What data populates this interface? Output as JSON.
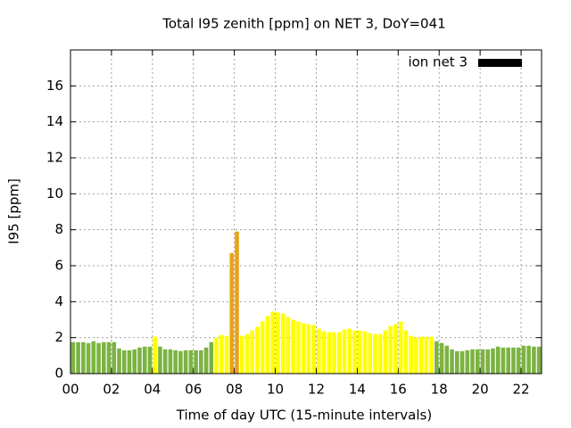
{
  "chart_data": {
    "type": "bar",
    "title": "Total I95 zenith [ppm] on NET 3, DoY=041",
    "xlabel": "Time of day UTC (15-minute intervals)",
    "ylabel": "I95 [ppm]",
    "x": [
      0,
      0.25,
      0.5,
      0.75,
      1,
      1.25,
      1.5,
      1.75,
      2,
      2.25,
      2.5,
      2.75,
      3,
      3.25,
      3.5,
      3.75,
      4,
      4.25,
      4.5,
      4.75,
      5,
      5.25,
      5.5,
      5.75,
      6,
      6.25,
      6.5,
      6.75,
      7,
      7.25,
      7.5,
      7.75,
      8,
      8.25,
      8.5,
      8.75,
      9,
      9.25,
      9.5,
      9.75,
      10,
      10.25,
      10.5,
      10.75,
      11,
      11.25,
      11.5,
      11.75,
      12,
      12.25,
      12.5,
      12.75,
      13,
      13.25,
      13.5,
      13.75,
      14,
      14.25,
      14.5,
      14.75,
      15,
      15.25,
      15.5,
      15.75,
      16,
      16.25,
      16.5,
      16.75,
      17,
      17.25,
      17.5,
      17.75,
      18,
      18.25,
      18.5,
      18.75,
      19,
      19.25,
      19.5,
      19.75,
      20,
      20.25,
      20.5,
      20.75,
      21,
      21.25,
      21.5,
      21.75,
      22,
      22.25,
      22.5,
      22.75
    ],
    "series": [
      {
        "name": "ion net 3",
        "color": "#000000",
        "values": [
          1.75,
          1.75,
          1.75,
          1.7,
          1.8,
          1.7,
          1.75,
          1.75,
          1.75,
          1.4,
          1.3,
          1.3,
          1.35,
          1.45,
          1.5,
          1.5,
          2.05,
          1.5,
          1.35,
          1.35,
          1.3,
          1.25,
          1.3,
          1.3,
          1.3,
          1.3,
          1.45,
          1.75,
          2.0,
          2.15,
          2.1,
          6.7,
          7.9,
          2.1,
          2.2,
          2.4,
          2.6,
          2.9,
          3.2,
          3.45,
          3.4,
          3.35,
          3.15,
          3.0,
          2.9,
          2.8,
          2.75,
          2.7,
          2.5,
          2.35,
          2.3,
          2.3,
          2.3,
          2.45,
          2.5,
          2.4,
          2.4,
          2.35,
          2.25,
          2.2,
          2.2,
          2.4,
          2.65,
          2.75,
          2.9,
          2.4,
          2.1,
          2.0,
          2.05,
          2.05,
          2.05,
          1.8,
          1.7,
          1.55,
          1.35,
          1.25,
          1.25,
          1.3,
          1.35,
          1.35,
          1.35,
          1.35,
          1.4,
          1.5,
          1.45,
          1.45,
          1.45,
          1.45,
          1.55,
          1.55,
          1.5,
          1.5
        ],
        "bar_colors": [
          "#7cb342",
          "#7cb342",
          "#7cb342",
          "#7cb342",
          "#7cb342",
          "#7cb342",
          "#7cb342",
          "#7cb342",
          "#7cb342",
          "#7cb342",
          "#7cb342",
          "#7cb342",
          "#7cb342",
          "#7cb342",
          "#7cb342",
          "#7cb342",
          "#ffff00",
          "#7cb342",
          "#7cb342",
          "#7cb342",
          "#7cb342",
          "#7cb342",
          "#7cb342",
          "#7cb342",
          "#7cb342",
          "#7cb342",
          "#7cb342",
          "#7cb342",
          "#ffff00",
          "#ffff00",
          "#ffff00",
          "#e8a317",
          "#e8a317",
          "#ffff00",
          "#ffff00",
          "#ffff00",
          "#ffff00",
          "#ffff00",
          "#ffff00",
          "#ffff00",
          "#ffff00",
          "#ffff00",
          "#ffff00",
          "#ffff00",
          "#ffff00",
          "#ffff00",
          "#ffff00",
          "#ffff00",
          "#ffff00",
          "#ffff00",
          "#ffff00",
          "#ffff00",
          "#ffff00",
          "#ffff00",
          "#ffff00",
          "#ffff00",
          "#ffff00",
          "#ffff00",
          "#ffff00",
          "#ffff00",
          "#ffff00",
          "#ffff00",
          "#ffff00",
          "#ffff00",
          "#ffff00",
          "#ffff00",
          "#ffff00",
          "#ffff00",
          "#ffff00",
          "#ffff00",
          "#ffff00",
          "#7cb342",
          "#7cb342",
          "#7cb342",
          "#7cb342",
          "#7cb342",
          "#7cb342",
          "#7cb342",
          "#7cb342",
          "#7cb342",
          "#7cb342",
          "#7cb342",
          "#7cb342",
          "#7cb342",
          "#7cb342",
          "#7cb342",
          "#7cb342",
          "#7cb342",
          "#7cb342",
          "#7cb342",
          "#7cb342",
          "#7cb342"
        ]
      }
    ],
    "xlim": [
      0,
      23
    ],
    "ylim": [
      0,
      18
    ],
    "xticks": [
      {
        "value": 0,
        "label": "00"
      },
      {
        "value": 2,
        "label": "02"
      },
      {
        "value": 4,
        "label": "04"
      },
      {
        "value": 6,
        "label": "06"
      },
      {
        "value": 8,
        "label": "08"
      },
      {
        "value": 10,
        "label": "10"
      },
      {
        "value": 12,
        "label": "12"
      },
      {
        "value": 14,
        "label": "14"
      },
      {
        "value": 16,
        "label": "16"
      },
      {
        "value": 18,
        "label": "18"
      },
      {
        "value": 20,
        "label": "20"
      },
      {
        "value": 22,
        "label": "22"
      }
    ],
    "yticks": [
      0,
      2,
      4,
      6,
      8,
      10,
      12,
      14,
      16
    ],
    "grid": true,
    "legend": "top-right"
  }
}
